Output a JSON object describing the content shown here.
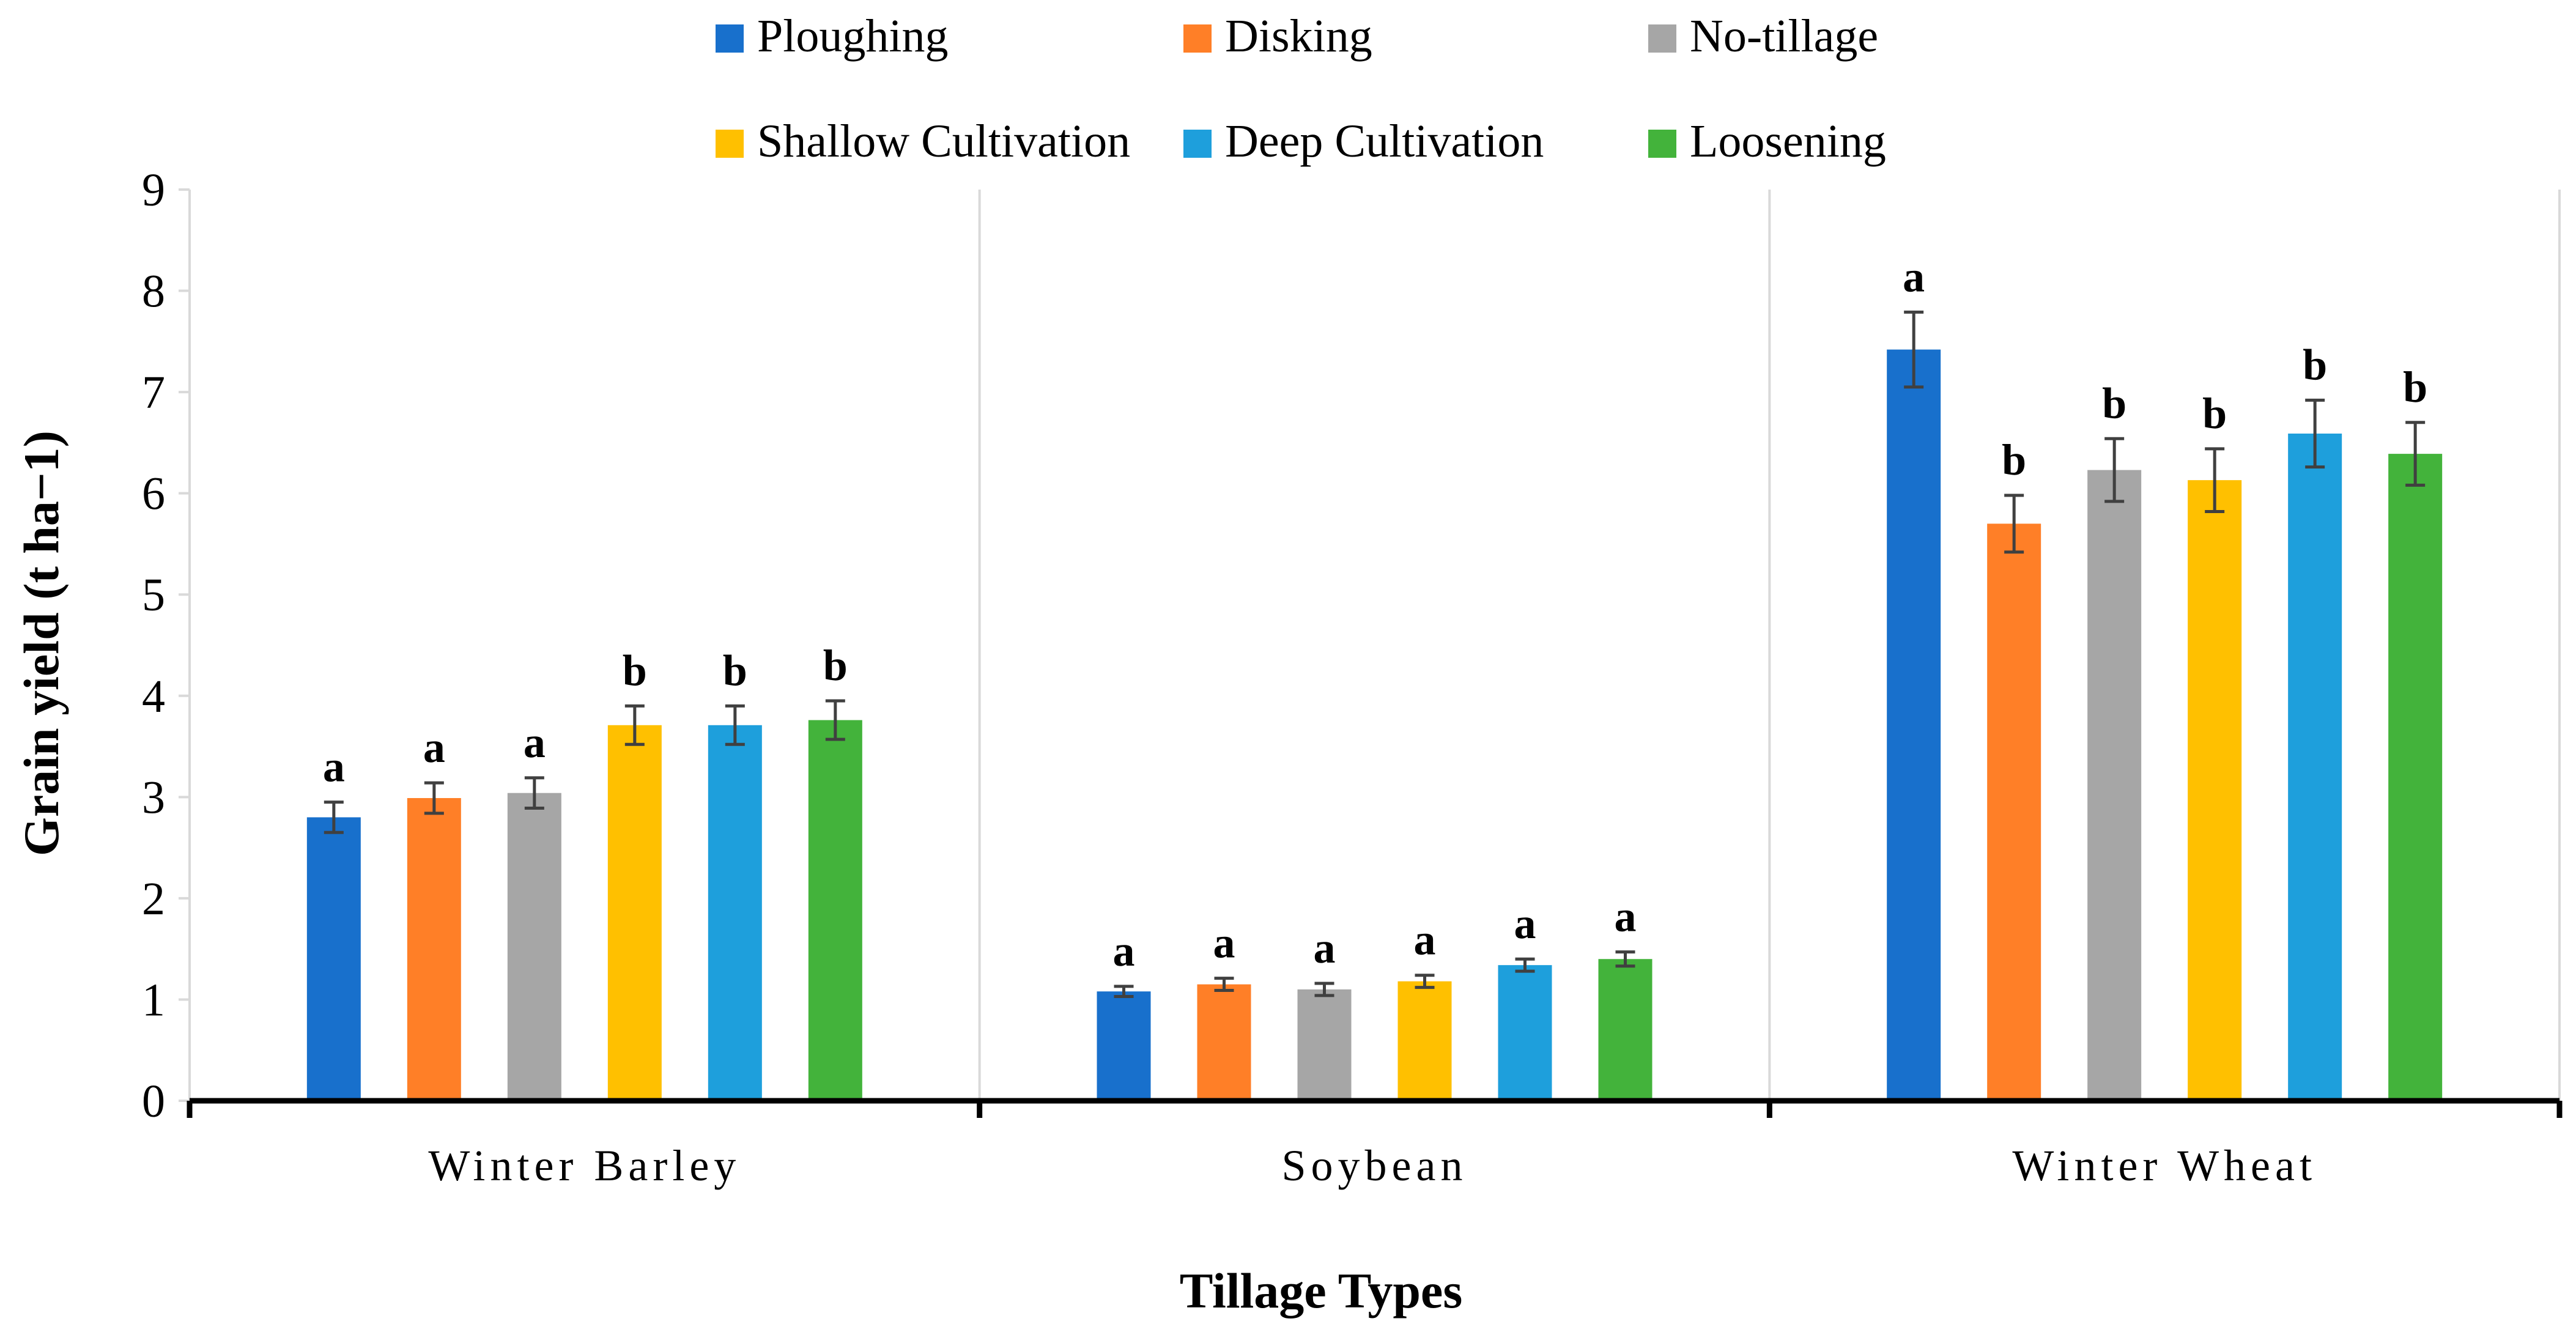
{
  "chart_data": {
    "type": "bar",
    "title": "",
    "xlabel": "Tillage Types",
    "ylabel": "Grain yield (t ha−1)",
    "ylim": [
      0,
      9
    ],
    "yticks": [
      "0",
      "1",
      "2",
      "3",
      "4",
      "5",
      "6",
      "7",
      "8",
      "9"
    ],
    "grid": "vertical separators between groups",
    "legend_position": "top",
    "categories": [
      "Winter Barley",
      "Soybean",
      "Winter Wheat"
    ],
    "series": [
      {
        "name": "Ploughing",
        "color": "#1870CC",
        "values": [
          2.8,
          1.08,
          7.42
        ],
        "errors": [
          0.15,
          0.05,
          0.37
        ],
        "labels": [
          "a",
          "a",
          "a"
        ]
      },
      {
        "name": "Disking",
        "color": "#FF7F27",
        "values": [
          2.99,
          1.15,
          5.7
        ],
        "errors": [
          0.15,
          0.06,
          0.28
        ],
        "labels": [
          "a",
          "a",
          "b"
        ]
      },
      {
        "name": "No-tillage",
        "color": "#A6A6A6",
        "values": [
          3.04,
          1.1,
          6.23
        ],
        "errors": [
          0.15,
          0.06,
          0.31
        ],
        "labels": [
          "a",
          "a",
          "b"
        ]
      },
      {
        "name": "Shallow Cultivation",
        "color": "#FFC000",
        "values": [
          3.71,
          1.18,
          6.13
        ],
        "errors": [
          0.19,
          0.06,
          0.31
        ],
        "labels": [
          "b",
          "a",
          "b"
        ]
      },
      {
        "name": "Deep Cultivation",
        "color": "#1E9FDC",
        "values": [
          3.71,
          1.34,
          6.59
        ],
        "errors": [
          0.19,
          0.06,
          0.33
        ],
        "labels": [
          "b",
          "a",
          "b"
        ]
      },
      {
        "name": "Loosening",
        "color": "#43B33B",
        "values": [
          3.76,
          1.4,
          6.39
        ],
        "errors": [
          0.19,
          0.07,
          0.31
        ],
        "labels": [
          "b",
          "a",
          "b"
        ]
      }
    ]
  }
}
